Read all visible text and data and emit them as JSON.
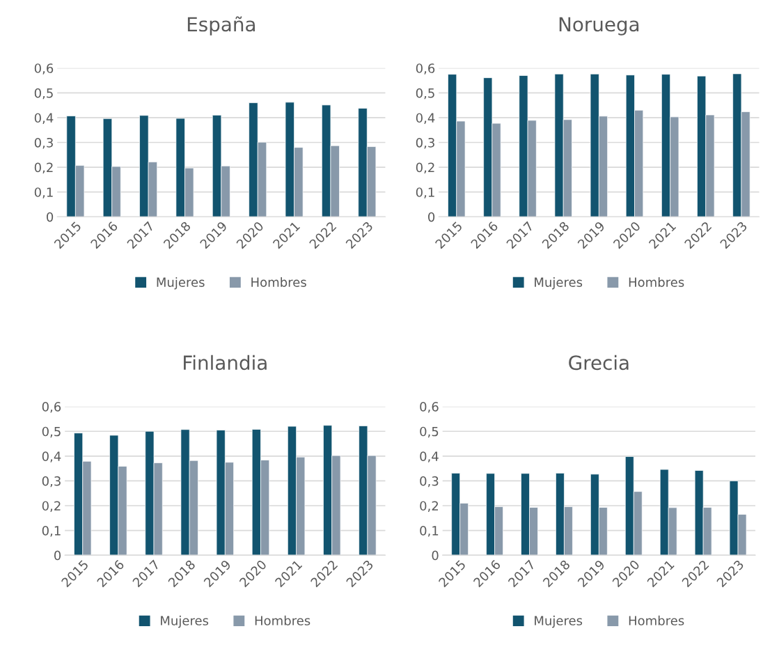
{
  "chart_data": [
    {
      "type": "bar",
      "title": "España",
      "categories": [
        "2015",
        "2016",
        "2017",
        "2018",
        "2019",
        "2020",
        "2021",
        "2022",
        "2023"
      ],
      "series": [
        {
          "name": "Mujeres",
          "color": "#12546f",
          "values": [
            0.407,
            0.396,
            0.409,
            0.397,
            0.41,
            0.46,
            0.462,
            0.451,
            0.438
          ]
        },
        {
          "name": "Hombres",
          "color": "#8899aa",
          "values": [
            0.207,
            0.203,
            0.221,
            0.197,
            0.205,
            0.301,
            0.28,
            0.287,
            0.283
          ]
        }
      ],
      "ylim": [
        0,
        0.6
      ],
      "yticks": [
        0,
        {
          "value": 0.1,
          "label": "0,1"
        },
        {
          "value": 0.2,
          "label": "0,2"
        },
        {
          "value": 0.3,
          "label": "0,3"
        },
        {
          "value": 0.4,
          "label": "0,4"
        },
        {
          "value": 0.5,
          "label": "0,5"
        },
        {
          "value": 0.6,
          "label": "0,6"
        }
      ],
      "grid": "y",
      "legend": "bottom"
    },
    {
      "type": "bar",
      "title": "Noruega",
      "categories": [
        "2015",
        "2016",
        "2017",
        "2018",
        "2019",
        "2020",
        "2021",
        "2022",
        "2023"
      ],
      "series": [
        {
          "name": "Mujeres",
          "color": "#12546f",
          "values": [
            0.575,
            0.561,
            0.57,
            0.576,
            0.576,
            0.572,
            0.575,
            0.568,
            0.577
          ]
        },
        {
          "name": "Hombres",
          "color": "#8899aa",
          "values": [
            0.386,
            0.377,
            0.389,
            0.392,
            0.406,
            0.43,
            0.403,
            0.411,
            0.424
          ]
        }
      ],
      "ylim": [
        0,
        0.6
      ],
      "yticks": [
        0,
        {
          "value": 0.1,
          "label": "0,1"
        },
        {
          "value": 0.2,
          "label": "0,2"
        },
        {
          "value": 0.3,
          "label": "0,3"
        },
        {
          "value": 0.4,
          "label": "0,4"
        },
        {
          "value": 0.5,
          "label": "0,5"
        },
        {
          "value": 0.6,
          "label": "0,6"
        }
      ],
      "grid": "y",
      "legend": "bottom"
    },
    {
      "type": "bar",
      "title": "Finlandia",
      "categories": [
        "2015",
        "2016",
        "2017",
        "2018",
        "2019",
        "2020",
        "2021",
        "2022",
        "2023"
      ],
      "series": [
        {
          "name": "Mujeres",
          "color": "#12546f",
          "values": [
            0.493,
            0.484,
            0.5,
            0.507,
            0.505,
            0.508,
            0.52,
            0.524,
            0.522
          ]
        },
        {
          "name": "Hombres",
          "color": "#8899aa",
          "values": [
            0.379,
            0.359,
            0.373,
            0.382,
            0.375,
            0.384,
            0.396,
            0.402,
            0.402
          ]
        }
      ],
      "ylim": [
        0,
        0.6
      ],
      "yticks": [
        0,
        {
          "value": 0.1,
          "label": "0,1"
        },
        {
          "value": 0.2,
          "label": "0,2"
        },
        {
          "value": 0.3,
          "label": "0,3"
        },
        {
          "value": 0.4,
          "label": "0,4"
        },
        {
          "value": 0.5,
          "label": "0,5"
        },
        {
          "value": 0.6,
          "label": "0,6"
        }
      ],
      "grid": "y",
      "legend": "bottom"
    },
    {
      "type": "bar",
      "title": "Grecia",
      "categories": [
        "2015",
        "2016",
        "2017",
        "2018",
        "2019",
        "2020",
        "2021",
        "2022",
        "2023"
      ],
      "series": [
        {
          "name": "Mujeres",
          "color": "#12546f",
          "values": [
            0.331,
            0.33,
            0.33,
            0.331,
            0.327,
            0.398,
            0.346,
            0.342,
            0.3
          ]
        },
        {
          "name": "Hombres",
          "color": "#8899aa",
          "values": [
            0.21,
            0.196,
            0.193,
            0.196,
            0.193,
            0.257,
            0.192,
            0.193,
            0.165
          ]
        }
      ],
      "ylim": [
        0,
        0.6
      ],
      "yticks": [
        0,
        {
          "value": 0.1,
          "label": "0,1"
        },
        {
          "value": 0.2,
          "label": "0,2"
        },
        {
          "value": 0.3,
          "label": "0,3"
        },
        {
          "value": 0.4,
          "label": "0,4"
        },
        {
          "value": 0.5,
          "label": "0,5"
        },
        {
          "value": 0.6,
          "label": "0,6"
        }
      ],
      "grid": "y",
      "legend": "bottom"
    }
  ]
}
